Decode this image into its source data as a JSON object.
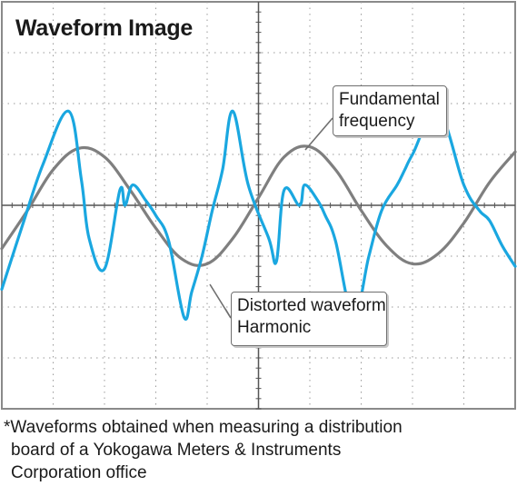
{
  "chart_data": {
    "type": "line",
    "title": "Waveform Image",
    "grid": true,
    "xlim": [
      0,
      10
    ],
    "ylim": [
      -4,
      4
    ],
    "series": [
      {
        "name": "Fundamental frequency",
        "color": "#7f7f7f",
        "x": [
          0.0,
          0.5,
          1.0,
          1.5,
          2.0,
          2.5,
          3.0,
          3.5,
          4.0,
          4.5,
          5.0,
          5.5,
          6.0,
          6.5,
          7.0,
          7.5,
          8.0,
          8.5,
          9.0,
          9.5,
          10.0
        ],
        "y": [
          -0.85,
          -0.1,
          0.7,
          1.12,
          0.95,
          0.3,
          -0.45,
          -1.05,
          -1.15,
          -0.65,
          0.15,
          0.95,
          1.15,
          0.7,
          -0.1,
          -0.8,
          -1.15,
          -0.95,
          -0.35,
          0.45,
          1.05
        ]
      },
      {
        "name": "Distorted waveform Harmonic",
        "color": "#1aa7e0",
        "x": [
          0.0,
          0.4,
          0.8,
          1.3,
          1.55,
          1.7,
          2.0,
          2.3,
          2.4,
          2.55,
          2.8,
          3.0,
          3.25,
          3.55,
          3.7,
          3.9,
          4.1,
          4.3,
          4.5,
          4.8,
          5.2,
          5.35,
          5.5,
          5.8,
          5.9,
          6.15,
          6.3,
          6.5,
          6.85,
          7.15,
          7.4,
          7.7,
          7.85,
          8.0,
          8.5,
          9.0,
          9.3,
          9.5,
          9.75,
          10.0
        ],
        "y": [
          -1.65,
          -0.4,
          0.8,
          1.85,
          0.5,
          -0.65,
          -1.25,
          0.3,
          0.0,
          0.4,
          0.1,
          -0.2,
          -0.7,
          -2.2,
          -1.7,
          -1.0,
          -0.1,
          0.7,
          1.85,
          0.4,
          -0.65,
          -1.1,
          0.3,
          0.0,
          0.4,
          0.1,
          -0.2,
          -0.7,
          -2.2,
          -1.0,
          -0.1,
          0.4,
          0.7,
          1.0,
          1.85,
          0.4,
          -0.1,
          -0.3,
          -0.8,
          -1.2
        ]
      }
    ]
  },
  "callouts": {
    "fundamental": [
      "Fundamental",
      "frequency"
    ],
    "distorted": [
      "Distorted waveform",
      "Harmonic"
    ]
  },
  "footnote": [
    "*Waveforms obtained when measuring a distribution",
    "board of a Yokogawa Meters & Instruments",
    "Corporation office"
  ]
}
